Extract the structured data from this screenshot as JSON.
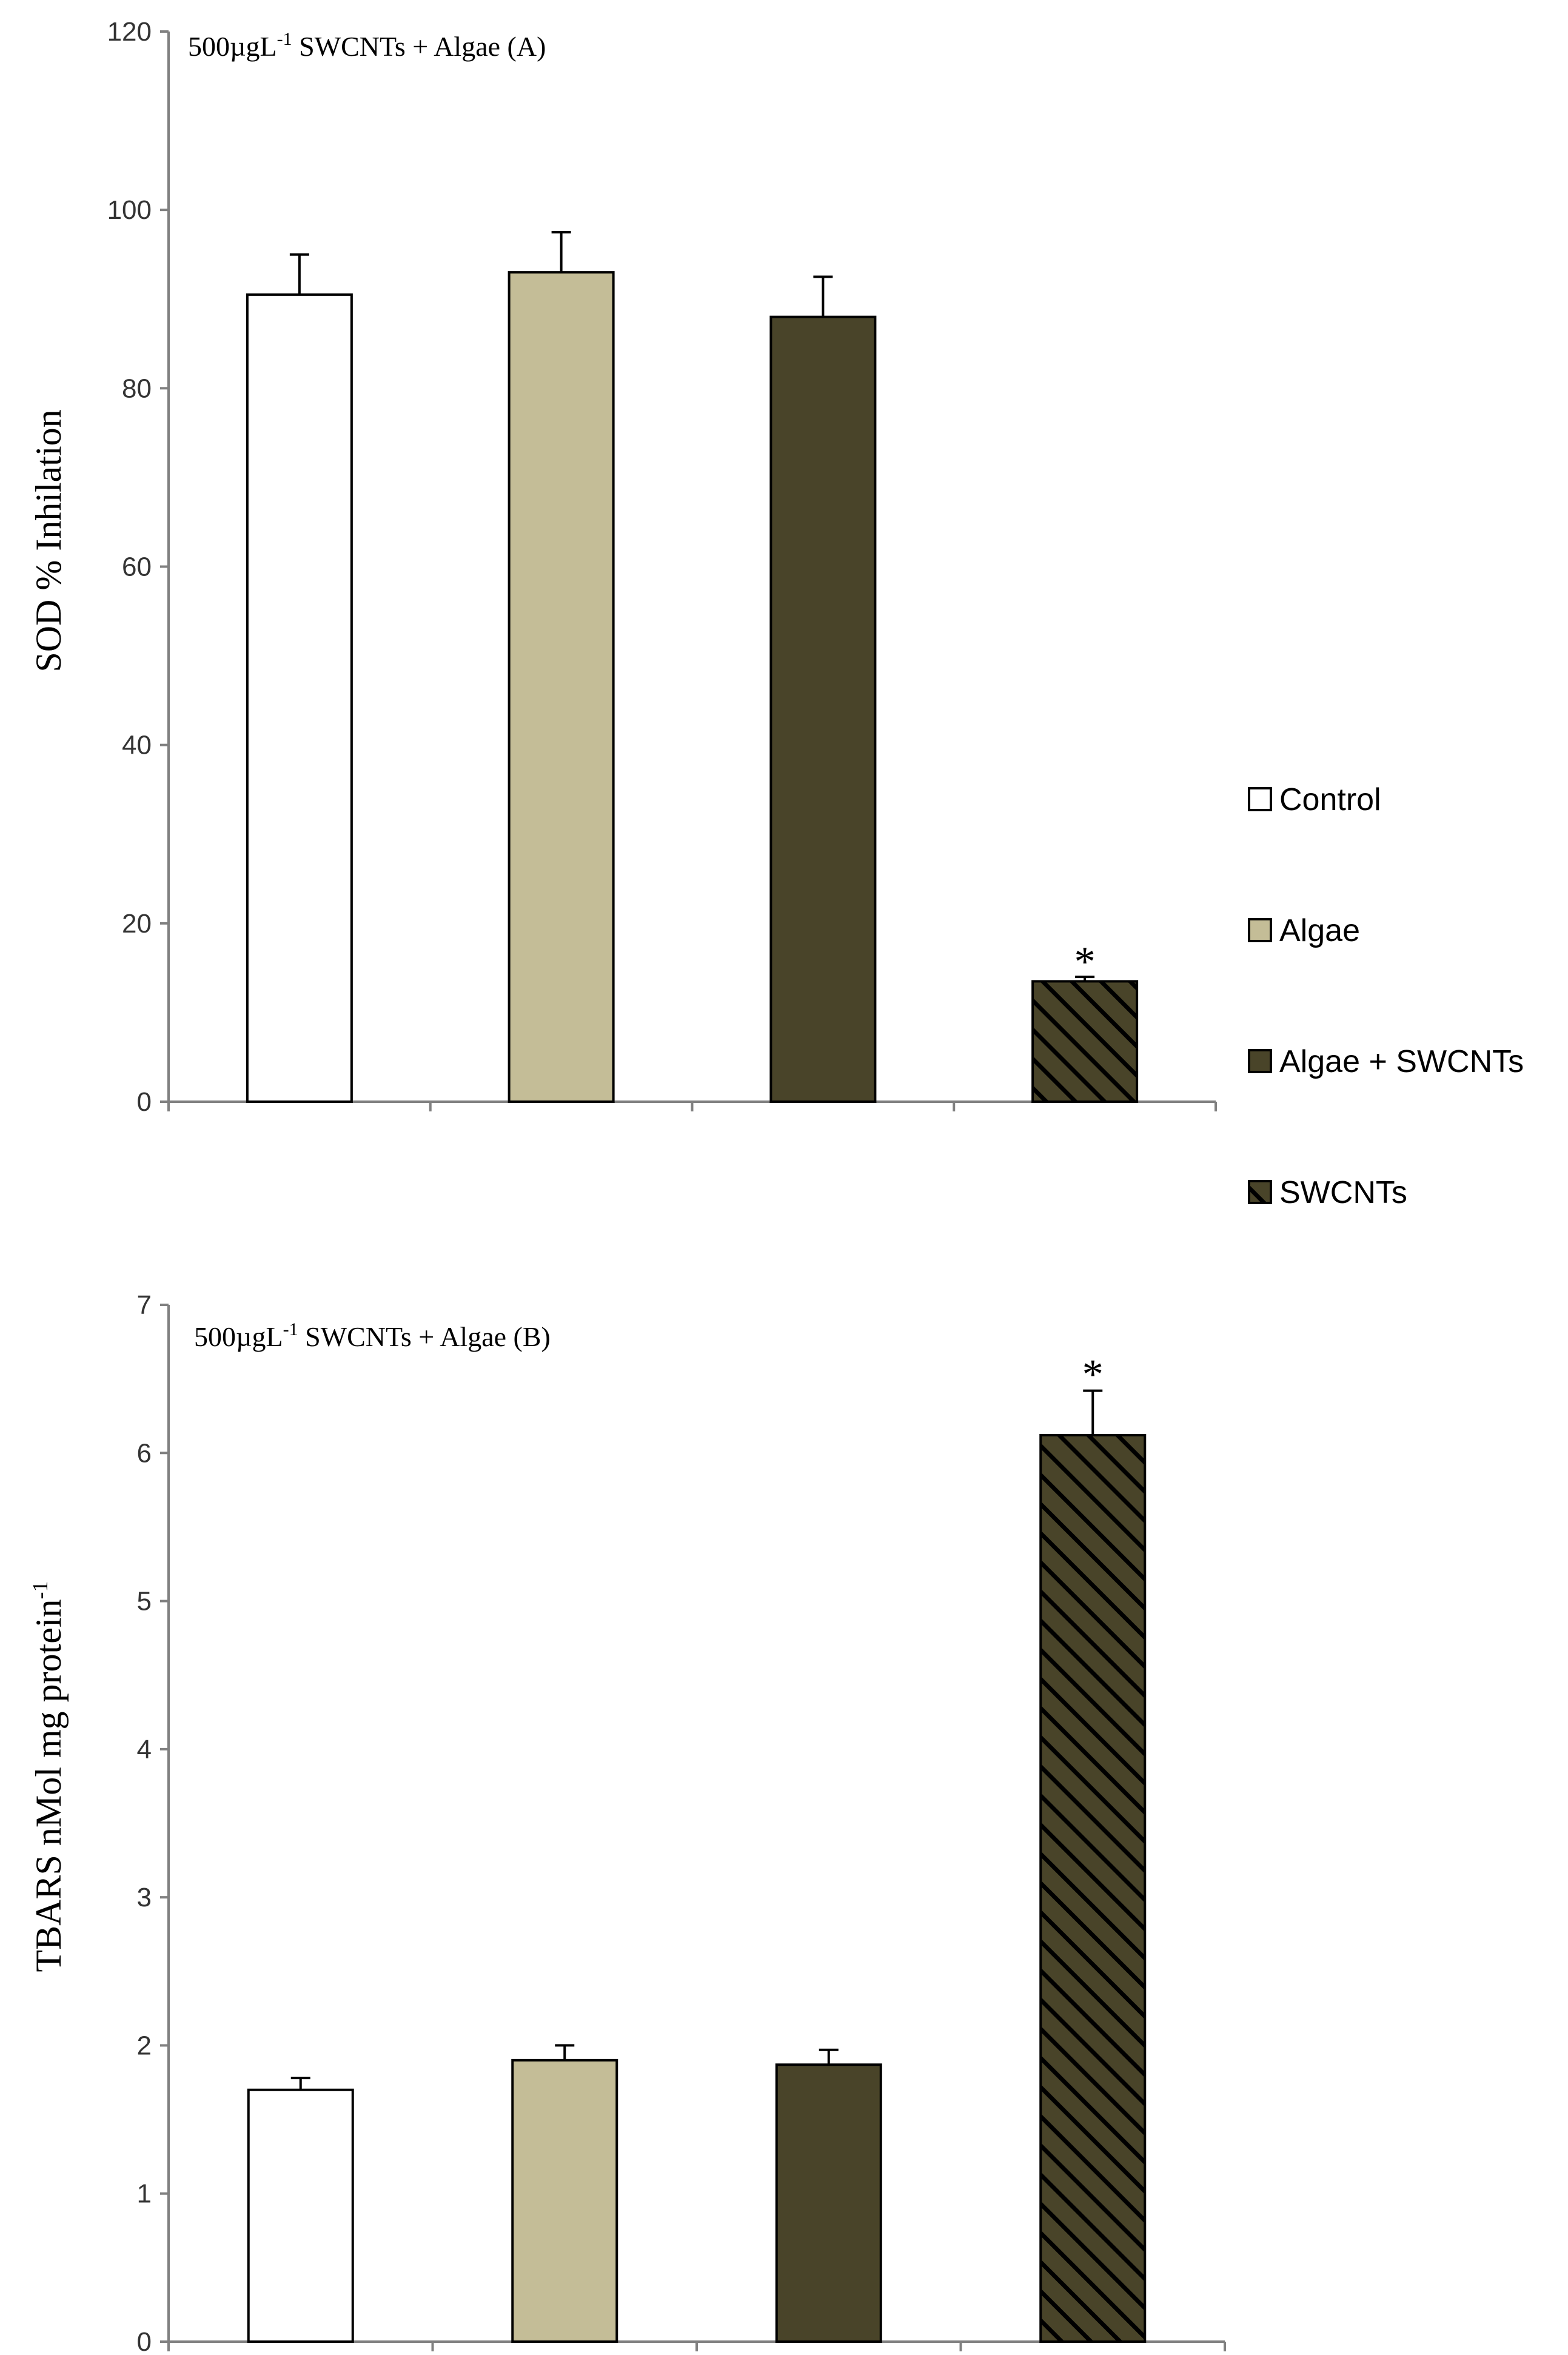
{
  "colors": {
    "Control": "#ffffff",
    "Algae": "#c4bd97",
    "Algae + SWCNTs": "#494429",
    "SWCNTs": "#494429",
    "hatch": "#000000",
    "axis": "#808080",
    "edge": "#000000"
  },
  "legend": {
    "items": [
      {
        "label": "Control",
        "swatch": "Control"
      },
      {
        "label": "Algae",
        "swatch": "Algae"
      },
      {
        "label": "Algae + SWCNTs",
        "swatch": "Algae + SWCNTs"
      },
      {
        "label": "SWCNTs",
        "swatch": "SWCNTs",
        "hatched": true
      }
    ]
  },
  "chart_data": [
    {
      "type": "bar",
      "panel": "A",
      "title": "500µgL",
      "title_superscript": "-1",
      "title_suffix": " SWCNTs + Algae (A)",
      "ylabel": "SOD % Inhilation",
      "ylim": [
        0,
        120
      ],
      "yticks": [
        0,
        20,
        40,
        60,
        80,
        100,
        120
      ],
      "categories": [
        "Control",
        "Algae",
        "Algae + SWCNTs",
        "SWCNTs"
      ],
      "values": [
        90.5,
        93,
        88,
        13.5
      ],
      "errors": [
        4.5,
        4.5,
        4.5,
        0.5
      ],
      "significance": [
        "",
        "",
        "",
        "*"
      ],
      "hatched": [
        false,
        false,
        false,
        true
      ]
    },
    {
      "type": "bar",
      "panel": "B",
      "title": "500µgL",
      "title_superscript": "-1",
      "title_suffix": " SWCNTs + Algae (B)",
      "ylabel": "TBARS nMol mg protein",
      "ylabel_superscript": "-1",
      "ylim": [
        0,
        7
      ],
      "yticks": [
        0,
        1,
        2,
        3,
        4,
        5,
        6,
        7
      ],
      "categories": [
        "Control",
        "Algae",
        "Algae + SWCNTs",
        "SWCNTs"
      ],
      "values": [
        1.7,
        1.9,
        1.87,
        6.12
      ],
      "errors": [
        0.08,
        0.1,
        0.1,
        0.3
      ],
      "significance": [
        "",
        "",
        "",
        "*"
      ],
      "hatched": [
        false,
        false,
        false,
        true
      ]
    }
  ]
}
